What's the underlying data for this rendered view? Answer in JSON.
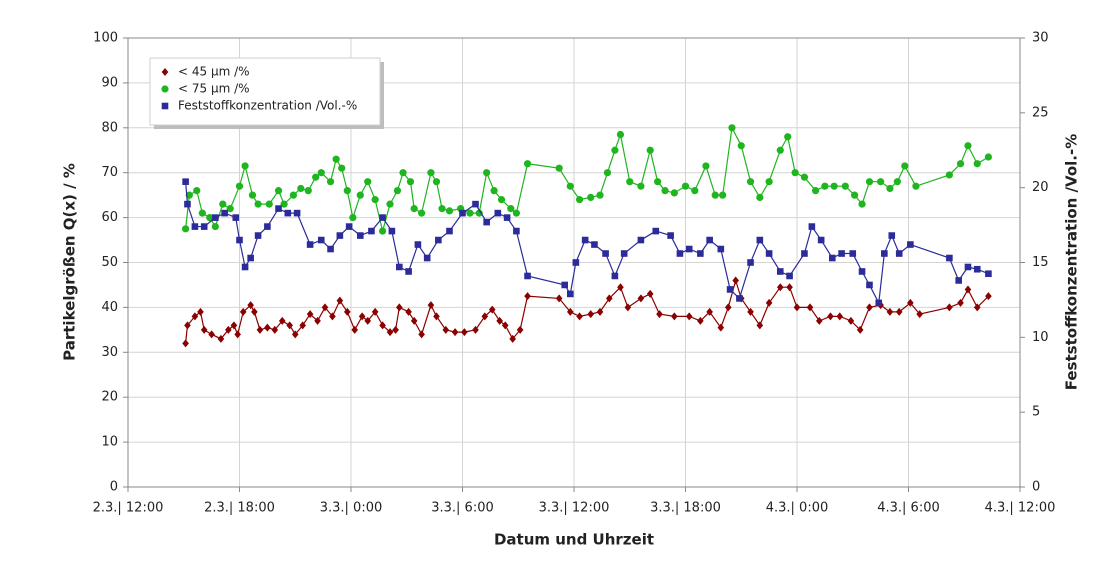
{
  "chart_data": {
    "type": "line",
    "x_label": "Datum und Uhrzeit",
    "y_label": "Partikelgrößen Q(x) / %",
    "y2_label": "Feststoffkonzentration /Vol.-%",
    "xlim": [
      12,
      60
    ],
    "xticks": [
      {
        "value": 12,
        "label": "2.3.| 12:00"
      },
      {
        "value": 18,
        "label": "2.3.| 18:00"
      },
      {
        "value": 24,
        "label": "3.3.| 0:00"
      },
      {
        "value": 30,
        "label": "3.3.| 6:00"
      },
      {
        "value": 36,
        "label": "3.3.| 12:00"
      },
      {
        "value": 42,
        "label": "3.3.| 18:00"
      },
      {
        "value": 48,
        "label": "4.3.| 0:00"
      },
      {
        "value": 54,
        "label": "4.3.| 6:00"
      },
      {
        "value": 60,
        "label": "4.3.| 12:00"
      }
    ],
    "ylim": [
      0,
      100
    ],
    "yticks": [
      0,
      10,
      20,
      30,
      40,
      50,
      60,
      70,
      80,
      90,
      100
    ],
    "y2lim": [
      0,
      30
    ],
    "y2ticks": [
      0,
      5,
      10,
      15,
      20,
      25,
      30
    ],
    "grid": true,
    "legend": "upper left",
    "series": [
      {
        "name": "< 45 µm /%",
        "color": "#8b0000",
        "marker": "diamond",
        "x": [
          15.1,
          15.2,
          15.6,
          15.9,
          16.1,
          16.5,
          17.0,
          17.4,
          17.7,
          17.9,
          18.2,
          18.6,
          18.8,
          19.1,
          19.5,
          19.9,
          20.3,
          20.7,
          21.0,
          21.4,
          21.8,
          22.2,
          22.6,
          23.0,
          23.4,
          23.8,
          24.2,
          24.6,
          24.9,
          25.3,
          25.7,
          26.1,
          26.4,
          26.6,
          27.1,
          27.4,
          27.8,
          28.3,
          28.6,
          29.1,
          29.6,
          30.1,
          30.7,
          31.2,
          31.6,
          32.0,
          32.3,
          32.7,
          33.1,
          33.5,
          35.2,
          35.8,
          36.3,
          36.9,
          37.4,
          37.9,
          38.5,
          38.9,
          39.6,
          40.1,
          40.6,
          41.4,
          42.2,
          42.8,
          43.3,
          43.9,
          44.3,
          44.7,
          45.0,
          45.5,
          46.0,
          46.5,
          47.1,
          47.6,
          48.0,
          48.7,
          49.2,
          49.8,
          50.3,
          50.9,
          51.4,
          51.9,
          52.5,
          53.0,
          53.5,
          54.1,
          54.6,
          56.2,
          56.8,
          57.2,
          57.7,
          58.3
        ],
        "values": [
          32,
          36,
          38,
          39,
          35,
          34,
          33,
          35,
          36,
          34,
          39,
          40.5,
          39,
          35,
          35.5,
          35,
          37,
          36,
          34,
          36,
          38.5,
          37,
          40,
          38,
          41.5,
          39,
          35,
          38,
          37,
          39,
          36,
          34.5,
          35,
          40,
          39,
          37,
          34,
          40.5,
          38,
          35,
          34.5,
          34.5,
          35,
          38,
          39.5,
          37,
          36,
          33,
          35,
          42.5,
          42,
          39,
          38,
          38.5,
          39,
          42,
          44.5,
          40,
          42,
          43,
          38.5,
          38,
          38,
          37,
          39,
          35.5,
          40,
          46,
          42,
          39,
          36,
          41,
          44.5,
          44.5,
          40,
          40,
          37,
          38,
          38,
          37,
          35,
          40,
          40.5,
          39,
          39,
          41,
          38.5,
          40,
          41,
          44,
          40,
          42.5
        ]
      },
      {
        "name": "< 75 µm /%",
        "color": "#1fb51f",
        "marker": "circle",
        "x": [
          15.1,
          15.3,
          15.7,
          16.0,
          16.4,
          16.7,
          17.1,
          17.5,
          18.0,
          18.3,
          18.7,
          19.0,
          19.6,
          20.1,
          20.4,
          20.9,
          21.3,
          21.7,
          22.1,
          22.4,
          22.9,
          23.2,
          23.5,
          23.8,
          24.1,
          24.5,
          24.9,
          25.3,
          25.7,
          26.1,
          26.5,
          26.8,
          27.2,
          27.4,
          27.8,
          28.3,
          28.6,
          28.9,
          29.3,
          29.9,
          30.4,
          30.9,
          31.3,
          31.7,
          32.1,
          32.6,
          32.9,
          33.5,
          35.2,
          35.8,
          36.3,
          36.9,
          37.4,
          37.8,
          38.2,
          38.5,
          39.0,
          39.6,
          40.1,
          40.5,
          40.9,
          41.4,
          42.0,
          42.5,
          43.1,
          43.6,
          44.0,
          44.5,
          45.0,
          45.5,
          46.0,
          46.5,
          47.1,
          47.5,
          47.9,
          48.4,
          49.0,
          49.5,
          50.0,
          50.6,
          51.1,
          51.5,
          51.9,
          52.5,
          53.0,
          53.4,
          53.8,
          54.4,
          56.2,
          56.8,
          57.2,
          57.7,
          58.3
        ],
        "values": [
          57.5,
          65,
          66,
          61,
          60,
          58,
          63,
          62,
          67,
          71.5,
          65,
          63,
          63,
          66,
          63,
          65,
          66.5,
          66,
          69,
          70,
          68,
          73,
          71,
          66,
          60,
          65,
          68,
          64,
          57,
          63,
          66,
          70,
          68,
          62,
          61,
          70,
          68,
          62,
          61.5,
          62,
          61,
          61,
          70,
          66,
          64,
          62,
          61,
          72,
          71,
          67,
          64,
          64.5,
          65,
          70,
          75,
          78.5,
          68,
          67,
          75,
          68,
          66,
          65.5,
          67,
          66,
          71.5,
          65,
          65,
          80,
          76,
          68,
          64.5,
          68,
          75,
          78,
          70,
          69,
          66,
          67,
          67,
          67,
          65,
          63,
          68,
          68,
          66.5,
          68,
          71.5,
          67,
          69.5,
          72,
          76,
          72,
          73.5
        ]
      },
      {
        "name": "Feststoffkonzentration /Vol.-%",
        "color": "#2b2b9a",
        "marker": "square",
        "axis": "y2",
        "x": [
          15.1,
          15.2,
          15.6,
          16.1,
          16.7,
          17.2,
          17.8,
          18.0,
          18.3,
          18.6,
          19.0,
          19.5,
          20.1,
          20.6,
          21.1,
          21.8,
          22.4,
          22.9,
          23.4,
          23.9,
          24.5,
          25.1,
          25.7,
          26.2,
          26.6,
          27.1,
          27.6,
          28.1,
          28.7,
          29.3,
          30.0,
          30.7,
          31.3,
          31.9,
          32.4,
          32.9,
          33.5,
          35.5,
          35.8,
          36.1,
          36.6,
          37.1,
          37.7,
          38.2,
          38.7,
          39.6,
          40.4,
          41.2,
          41.7,
          42.2,
          42.8,
          43.3,
          43.9,
          44.4,
          44.9,
          45.5,
          46.0,
          46.5,
          47.1,
          47.6,
          48.4,
          48.8,
          49.3,
          49.9,
          50.4,
          51.0,
          51.5,
          51.9,
          52.4,
          52.7,
          53.1,
          53.5,
          54.1,
          56.2,
          56.7,
          57.2,
          57.7,
          58.3
        ],
        "values": [
          20.4,
          18.9,
          17.4,
          17.4,
          18,
          18.3,
          18,
          16.5,
          14.7,
          15.3,
          16.8,
          17.4,
          18.6,
          18.3,
          18.3,
          16.2,
          16.5,
          15.9,
          16.8,
          17.4,
          16.8,
          17.1,
          18,
          17.1,
          14.7,
          14.4,
          16.2,
          15.3,
          16.5,
          17.1,
          18.3,
          18.9,
          17.7,
          18.3,
          18,
          17.1,
          14.1,
          13.5,
          12.9,
          15,
          16.5,
          16.2,
          15.6,
          14.1,
          15.6,
          16.5,
          17.1,
          16.8,
          15.6,
          15.9,
          15.6,
          16.5,
          15.9,
          13.2,
          12.6,
          15,
          16.5,
          15.6,
          14.4,
          14.1,
          15.6,
          17.4,
          16.5,
          15.3,
          15.6,
          15.6,
          14.4,
          13.5,
          12.3,
          15.6,
          16.8,
          15.6,
          16.2,
          15.3,
          13.8,
          14.7,
          14.55,
          14.25
        ]
      }
    ]
  }
}
